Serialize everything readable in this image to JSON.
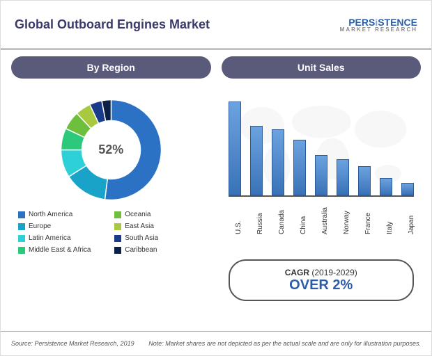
{
  "title": "Global Outboard Engines Market",
  "logo": {
    "top": "PERSiSTENCE",
    "bottom": "MARKET RESEARCH"
  },
  "left_panel": {
    "header": "By Region",
    "donut": {
      "center_label": "52%",
      "segments": [
        {
          "label": "North America",
          "value": 52,
          "color": "#2b72c4"
        },
        {
          "label": "Europe",
          "value": 14,
          "color": "#1aa3c9"
        },
        {
          "label": "Latin America",
          "value": 9,
          "color": "#2cd0d6"
        },
        {
          "label": "Middle East & Africa",
          "value": 7,
          "color": "#2dc97a"
        },
        {
          "label": "Oceania",
          "value": 6,
          "color": "#6fbf3f"
        },
        {
          "label": "East Asia",
          "value": 5,
          "color": "#a8c93f"
        },
        {
          "label": "South Asia",
          "value": 4,
          "color": "#1a3a8a"
        },
        {
          "label": "Caribbean",
          "value": 3,
          "color": "#0a2045"
        }
      ]
    }
  },
  "right_panel": {
    "header": "Unit Sales",
    "bars": {
      "categories": [
        "U.S.",
        "Russia",
        "Canada",
        "China",
        "Australia",
        "Norway",
        "France",
        "Italy",
        "Japan"
      ],
      "values": [
        135,
        100,
        95,
        80,
        58,
        52,
        42,
        25,
        18
      ],
      "bar_color_top": "#6ba3e0",
      "bar_color_bottom": "#3a72b8",
      "bar_border": "#2a5a9a",
      "axis_color": "#555555",
      "max": 135
    },
    "cagr": {
      "prefix": "CAGR",
      "period": "(2019-2029)",
      "value": "OVER 2%"
    }
  },
  "footer": {
    "source": "Source: Persistence Market Research, 2019",
    "note": "Note: Market shares are not depicted as per the actual scale and are only for illustration purposes."
  },
  "style": {
    "background": "#ffffff",
    "title_color": "#3a3a6a",
    "header_bg": "#5a5a7a",
    "cagr_color": "#2b5da8"
  }
}
